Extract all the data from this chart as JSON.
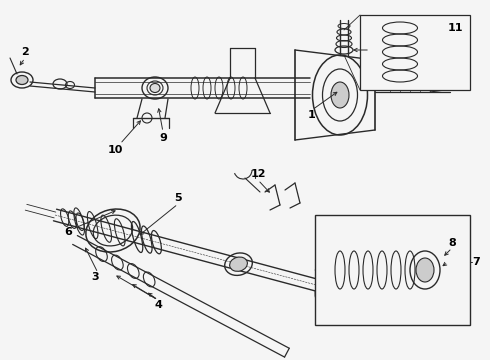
{
  "bg_color": "#f5f5f5",
  "line_color": "#2a2a2a",
  "label_color": "#000000",
  "fig_w": 4.9,
  "fig_h": 3.6,
  "dpi": 100
}
